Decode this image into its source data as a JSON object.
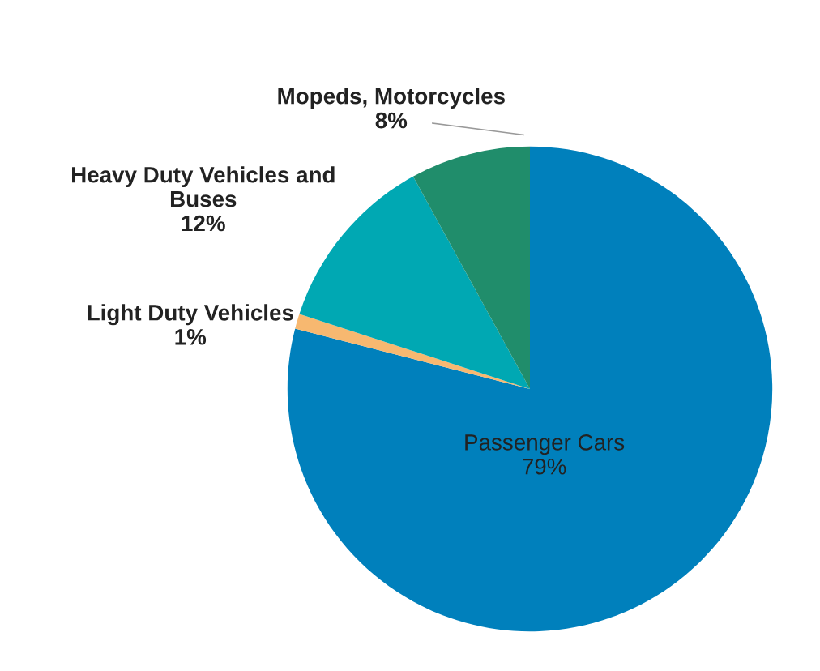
{
  "chart_data": {
    "type": "pie",
    "categories": [
      "Passenger Cars",
      "Light Duty Vehicles",
      "Heavy Duty Vehicles and\nBuses",
      "Mopeds, Motorcycles"
    ],
    "values": [
      79,
      1,
      12,
      8
    ],
    "value_labels": [
      "79%",
      "1%",
      "12%",
      "8%"
    ],
    "colors": [
      "#0080bc",
      "#f7b870",
      "#00a8b3",
      "#208d6b"
    ]
  }
}
